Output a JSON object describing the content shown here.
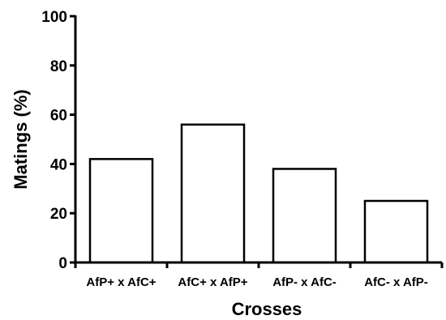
{
  "chart_data": {
    "type": "bar",
    "title": "",
    "xlabel": "Crosses",
    "ylabel": "Matings (%)",
    "categories": [
      "AfP+ x AfC+",
      "AfC+ x AfP+",
      "AfP- x AfC-",
      "AfC- x AfP-"
    ],
    "values": [
      42,
      56,
      38,
      25
    ],
    "ylim": [
      0,
      100
    ],
    "yticks": [
      0,
      20,
      40,
      60,
      80,
      100
    ],
    "grid": false,
    "legend": "none",
    "bar_fill": "#ffffff",
    "bar_stroke": "#000000"
  }
}
